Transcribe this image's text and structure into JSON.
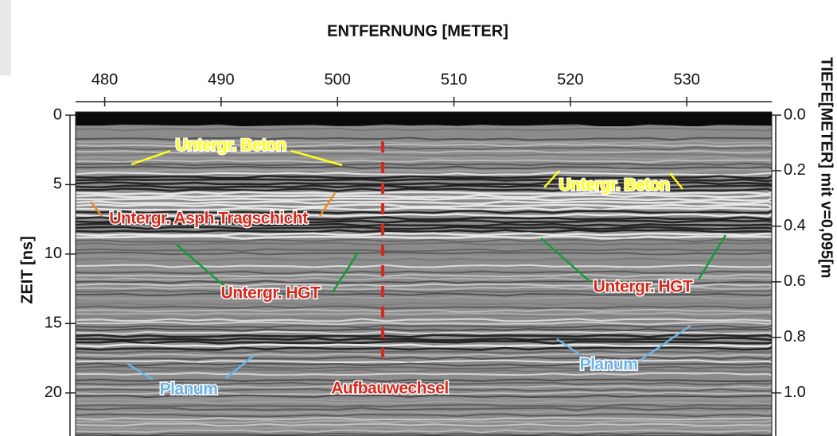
{
  "chart_data": {
    "type": "radargram",
    "xlabel": "ENTFERNUNG [METER]",
    "ylabel": "ZEIT [ns]",
    "y2label": "TIEFE[METER] mit v=0,095[m",
    "xlim": [
      477.5,
      537.3
    ],
    "xticks": [
      480,
      490,
      500,
      510,
      520,
      530
    ],
    "ylim": [
      0,
      23.1
    ],
    "yticks": [
      0,
      5,
      10,
      15,
      20
    ],
    "y2lim": [
      0,
      1.155
    ],
    "y2ticks": [
      {
        "value": 0,
        "label": "0.0"
      },
      {
        "value": 0.2,
        "label": "0.2"
      },
      {
        "value": 0.4,
        "label": "0.4"
      },
      {
        "value": 0.6,
        "label": "0.6"
      },
      {
        "value": 0.8,
        "label": "0.8"
      },
      {
        "value": 1.0,
        "label": "1.0"
      }
    ],
    "annotations": [
      {
        "text": "Untergr. Beton",
        "color": "#ffff1a"
      },
      {
        "text": "Untergr. Beton",
        "color": "#ffff1a"
      },
      {
        "text": "Untergr. Asph.Tragschicht",
        "color": "#d42a1e"
      },
      {
        "text": "Untergr. HGT",
        "color": "#d42a1e"
      },
      {
        "text": "Untergr. HGT",
        "color": "#d42a1e"
      },
      {
        "text": "Planum",
        "color": "#6cb4e8"
      },
      {
        "text": "Planum",
        "color": "#6cb4e8"
      },
      {
        "text": "Aufbauwechsel",
        "color": "#d42a1e"
      }
    ]
  }
}
